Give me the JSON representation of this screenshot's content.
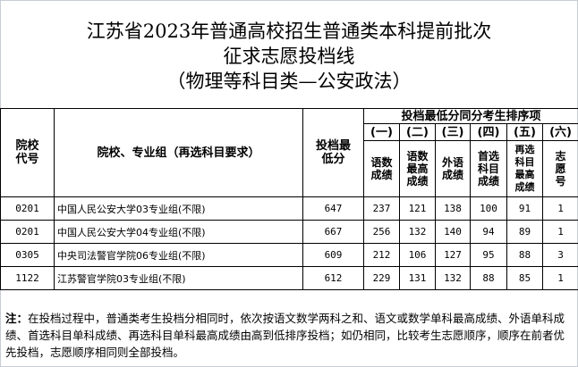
{
  "title": [
    "江苏省2023年普通高校招生普通类本科提前批次",
    "征求志愿投档线",
    "（物理等科目类—公安政法）"
  ],
  "header": {
    "code": "院校代号",
    "name": "院校、专业组（再选科目要求）",
    "min_score": "投档最低分",
    "tie_group": "投档最低分同分考生排序项",
    "sub_nums": [
      "(一)",
      "(二)",
      "(三)",
      "(四)",
      "(五)",
      "(六)"
    ],
    "sub_labels": [
      "语数成绩",
      "语数最高成绩",
      "外语成绩",
      "首选科目成绩",
      "再选科目最高成绩",
      "志愿号"
    ]
  },
  "rows": [
    {
      "code": "0201",
      "name": "中国人民公安大学03专业组(不限)",
      "min": "647",
      "v": [
        "237",
        "121",
        "138",
        "100",
        "91",
        "1"
      ]
    },
    {
      "code": "0201",
      "name": "中国人民公安大学04专业组(不限)",
      "min": "667",
      "v": [
        "256",
        "132",
        "140",
        "94",
        "89",
        "1"
      ]
    },
    {
      "code": "0305",
      "name": "中央司法警官学院06专业组(不限)",
      "min": "609",
      "v": [
        "212",
        "106",
        "127",
        "95",
        "88",
        "3"
      ]
    },
    {
      "code": "1122",
      "name": "江苏警官学院03专业组(不限)",
      "min": "612",
      "v": [
        "229",
        "131",
        "132",
        "88",
        "85",
        "1"
      ]
    }
  ],
  "note": {
    "label": "注：",
    "text": "在投档过程中，普通类考生投档分相同时，依次按语文数学两科之和、语文或数学单科最高成绩、外语单科成绩、首选科目单科成绩、再选科目单科最高成绩由高到低排序投档；如仍相同，比较考生志愿顺序，顺序在前者优先投档，志愿顺序相同则全部投档。"
  }
}
